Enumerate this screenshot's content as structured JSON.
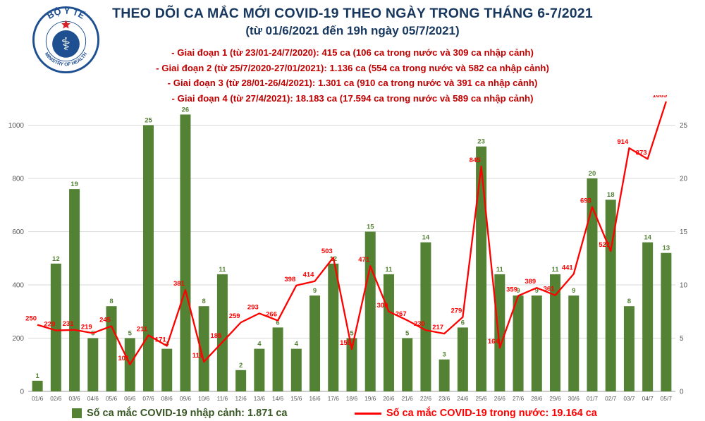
{
  "header": {
    "title_line1": "THEO DÕI CA MẮC MỚI COVID-19 THEO NGÀY TRONG THÁNG 6-7/2021",
    "title_line2": "(từ 01/6/2021 đến 19h ngày 05/7/2021)",
    "bullets": [
      "- Giai đoạn 1 (từ 23/01-24/7/2020): 415 ca (106 ca trong nước và 309 ca nhập cảnh)",
      "- Giai đoạn 2 (từ 25/7/2020-27/01/2021): 1.136 ca (554 ca trong nước và 582 ca nhập cảnh)",
      "- Giai đoạn 3 (từ 28/01-26/4/2021): 1.301 ca (910 ca trong nước và 391 ca nhập cảnh)",
      "- Giai đoạn 4 (từ 27/4/2021): 18.183 ca (17.594 ca trong nước và 589 ca nhập cảnh)"
    ],
    "logo": {
      "top_text": "BỘ Y TẾ",
      "bottom_text": "MINISTRY OF HEALTH"
    }
  },
  "chart_data": {
    "type": "bar",
    "title": "THEO DÕI CA MẮC MỚI COVID-19 THEO NGÀY TRONG THÁNG 6-7/2021 (từ 01/6/2021 đến 19h ngày 05/7/2021)",
    "categories": [
      "01/6",
      "02/6",
      "03/6",
      "04/6",
      "05/6",
      "06/6",
      "07/6",
      "08/6",
      "09/6",
      "10/6",
      "11/6",
      "12/6",
      "13/6",
      "14/6",
      "15/6",
      "16/6",
      "17/6",
      "18/6",
      "19/6",
      "20/6",
      "21/6",
      "22/6",
      "23/6",
      "24/6",
      "25/6",
      "26/6",
      "27/6",
      "28/6",
      "29/6",
      "30/6",
      "01/7",
      "02/7",
      "03/7",
      "04/7",
      "05/7"
    ],
    "series": [
      {
        "name": "Số ca mắc COVID-19 nhập cảnh",
        "type": "bar",
        "axis": "right",
        "color": "#548235",
        "values": [
          1,
          12,
          19,
          5,
          8,
          5,
          25,
          4,
          26,
          8,
          11,
          2,
          4,
          6,
          4,
          9,
          12,
          5,
          15,
          11,
          5,
          14,
          3,
          6,
          23,
          11,
          9,
          9,
          11,
          9,
          20,
          18,
          8,
          14,
          13
        ]
      },
      {
        "name": "Số ca mắc COVID-19 trong nước",
        "type": "line",
        "axis": "left",
        "color": "#ff0000",
        "values": [
          250,
          229,
          231,
          219,
          245,
          101,
          211,
          171,
          381,
          111,
          185,
          259,
          293,
          266,
          398,
          414,
          503,
          159,
          471,
          300,
          267,
          230,
          217,
          279,
          845,
          164,
          359,
          389,
          361,
          441,
          693,
          527,
          914,
          873,
          1089
        ]
      }
    ],
    "left_axis": {
      "label": "",
      "min": 0,
      "max": 1100,
      "ticks": [
        0,
        200,
        400,
        600,
        800,
        1000
      ]
    },
    "right_axis": {
      "label": "",
      "min": 0,
      "max": 27.5,
      "ticks": [
        0,
        5,
        10,
        15,
        20,
        25
      ]
    },
    "grid": true,
    "legend_position": "bottom"
  },
  "legend": {
    "imported_label": "Số ca mắc COVID-19 nhập cảnh: 1.871 ca",
    "domestic_label": "Số ca mắc COVID-19 trong nước: 19.164 ca",
    "imported_color": "#548235",
    "domestic_color": "#ff0000",
    "imported_text_color": "#375623",
    "domestic_text_color": "#ff0000"
  }
}
